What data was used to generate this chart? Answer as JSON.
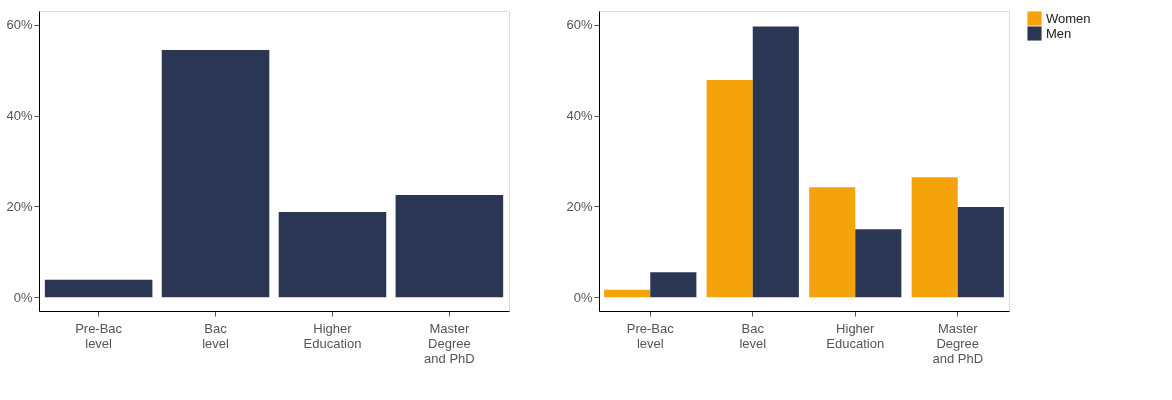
{
  "chart_data": [
    {
      "type": "bar",
      "categories": [
        "Pre-Bac level",
        "Bac level",
        "Higher Education",
        "Master Degree and PhD"
      ],
      "values": [
        3.9,
        54.4,
        18.8,
        22.5
      ],
      "color": "#2b3654",
      "ylim": [
        -3,
        63
      ],
      "yticks": [
        {
          "value": 0,
          "label": "0%"
        },
        {
          "value": 20,
          "label": "20%"
        },
        {
          "value": 40,
          "label": "40%"
        },
        {
          "value": 60,
          "label": "60%"
        }
      ],
      "grid": false,
      "legend": false
    },
    {
      "type": "bar",
      "categories": [
        "Pre-Bac level",
        "Bac level",
        "Higher Education",
        "Master Degree and PhD"
      ],
      "series": [
        {
          "name": "Women",
          "color": "#f5a30a",
          "values": [
            1.7,
            47.8,
            24.2,
            26.4
          ]
        },
        {
          "name": "Men",
          "color": "#2b3654",
          "values": [
            5.5,
            59.6,
            15.0,
            19.9
          ]
        }
      ],
      "ylim": [
        -3,
        63
      ],
      "yticks": [
        {
          "value": 0,
          "label": "0%"
        },
        {
          "value": 20,
          "label": "20%"
        },
        {
          "value": 40,
          "label": "40%"
        },
        {
          "value": 60,
          "label": "60%"
        }
      ],
      "grid": false,
      "legend": "right"
    }
  ]
}
